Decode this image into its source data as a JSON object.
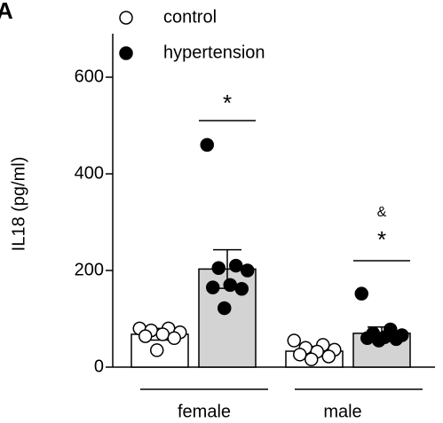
{
  "chart_data": {
    "type": "bar",
    "panel_label": "A",
    "ylabel": "IL18 (pg/ml)",
    "categories": [
      "female",
      "male"
    ],
    "ylim": [
      0,
      690
    ],
    "yticks": [
      0,
      200,
      400,
      600
    ],
    "series": [
      {
        "name": "control",
        "color": "#ffffff",
        "marker_color": "#ffffff",
        "values": [
          68,
          33
        ],
        "errors": [
          12,
          10
        ],
        "points": [
          [
            80,
            80,
            76,
            72,
            68,
            64,
            60,
            35
          ],
          [
            55,
            46,
            40,
            36,
            32,
            26,
            22,
            16
          ]
        ]
      },
      {
        "name": "hypertension",
        "color": "#d3d3d3",
        "marker_color": "#000000",
        "values": [
          203,
          70
        ],
        "errors": [
          40,
          13
        ],
        "points": [
          [
            460,
            210,
            205,
            200,
            170,
            165,
            162,
            122
          ],
          [
            152,
            78,
            70,
            66,
            62,
            60,
            58,
            55
          ]
        ]
      }
    ],
    "annotations": [
      "*",
      "*",
      "&"
    ]
  }
}
